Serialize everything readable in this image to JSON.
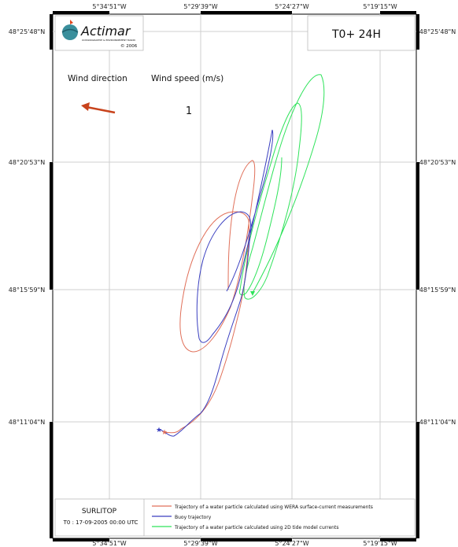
{
  "logo": {
    "brand": "Actimar",
    "tagline": "OCEANOGRAPHIE & ENVIRONNEMENT MARIN",
    "copyright": "© 2006"
  },
  "time_label": "T0+ 24H",
  "wind": {
    "direction_title": "Wind direction",
    "speed_title": "Wind speed (m/s)",
    "speed_value": "1",
    "arrow_color": "#c8431c"
  },
  "longitude_ticks": [
    "5°34'51\"W",
    "5°29'39\"W",
    "5°24'27\"W",
    "5°19'15\"W"
  ],
  "latitude_ticks": [
    "48°25'48\"N",
    "48°20'53\"N",
    "48°15'59\"N",
    "48°11'04\"N"
  ],
  "legend": {
    "project": "SURLITOP",
    "t0": "T0 : 17-09-2005 00:00 UTC",
    "entries": [
      {
        "label": "Trajectory of a water particle calculated using WERA surface-current measurements",
        "color": "#e0705a"
      },
      {
        "label": "Buoy trajectory",
        "color": "#3a3fc0"
      },
      {
        "label": "Trajectory of a water particle calculated using 2D tide model currents",
        "color": "#2ee35a"
      }
    ]
  },
  "colors": {
    "wera": "#e0705a",
    "buoy": "#3a3fc0",
    "model": "#2ee35a",
    "accent": "#e0471f"
  }
}
